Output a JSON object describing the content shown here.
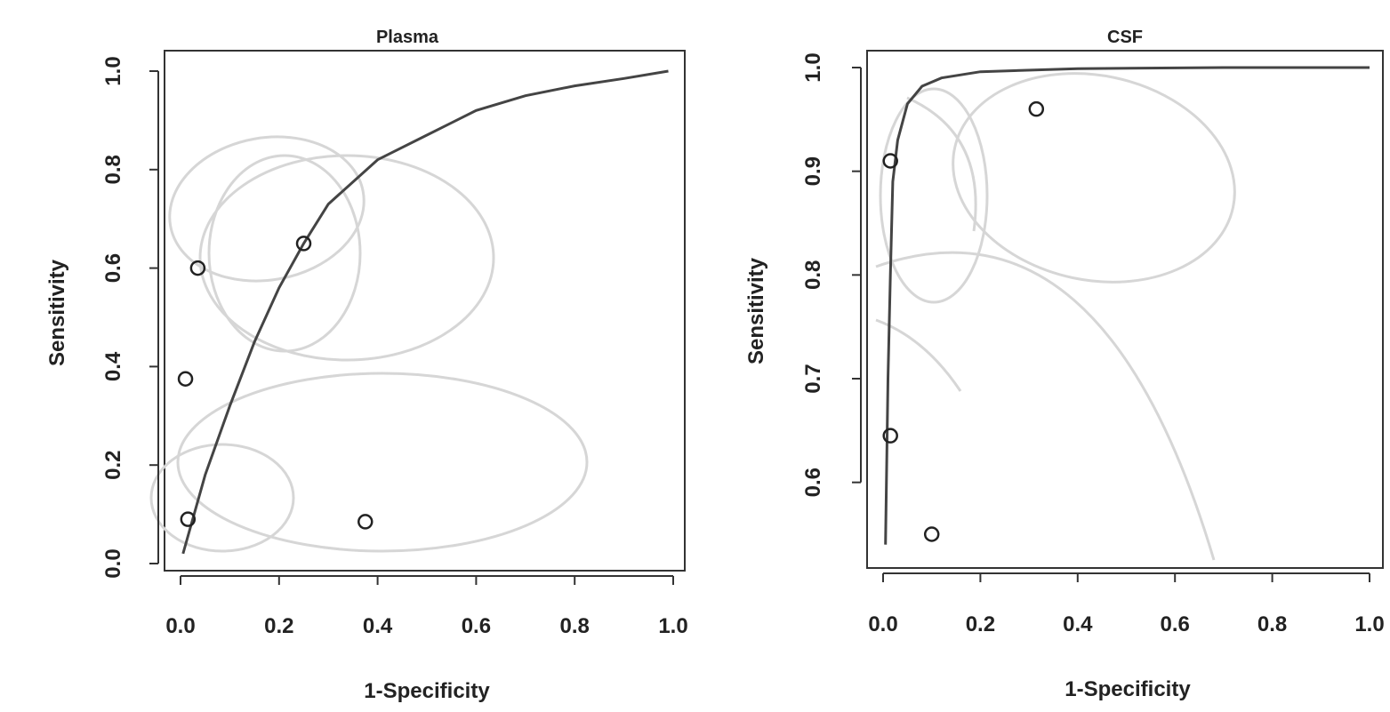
{
  "chart_data": [
    {
      "type": "scatter",
      "title": "Plasma",
      "xlabel": "1-Specificity",
      "ylabel": "Sensitivity",
      "xlim": [
        0.0,
        1.0
      ],
      "ylim": [
        0.0,
        1.0
      ],
      "xticks": [
        "0.0",
        "0.2",
        "0.4",
        "0.6",
        "0.8",
        "1.0"
      ],
      "yticks": [
        "0.0",
        "0.2",
        "0.4",
        "0.6",
        "0.8",
        "1.0"
      ],
      "grid": false,
      "points": [
        {
          "x": 0.035,
          "y": 0.6
        },
        {
          "x": 0.25,
          "y": 0.65
        },
        {
          "x": 0.01,
          "y": 0.375
        },
        {
          "x": 0.015,
          "y": 0.09
        },
        {
          "x": 0.375,
          "y": 0.085
        }
      ],
      "sroc_curve": [
        {
          "x": 0.005,
          "y": 0.02
        },
        {
          "x": 0.05,
          "y": 0.18
        },
        {
          "x": 0.1,
          "y": 0.32
        },
        {
          "x": 0.15,
          "y": 0.45
        },
        {
          "x": 0.2,
          "y": 0.56
        },
        {
          "x": 0.25,
          "y": 0.65
        },
        {
          "x": 0.3,
          "y": 0.73
        },
        {
          "x": 0.4,
          "y": 0.82
        },
        {
          "x": 0.5,
          "y": 0.87
        },
        {
          "x": 0.6,
          "y": 0.92
        },
        {
          "x": 0.7,
          "y": 0.95
        },
        {
          "x": 0.8,
          "y": 0.97
        },
        {
          "x": 0.9,
          "y": 0.985
        },
        {
          "x": 0.99,
          "y": 1.0
        }
      ]
    },
    {
      "type": "scatter",
      "title": "CSF",
      "xlabel": "1-Specificity",
      "ylabel": "Sensitivity",
      "xlim": [
        0.0,
        1.0
      ],
      "ylim": [
        0.52,
        1.0
      ],
      "xticks": [
        "0.0",
        "0.2",
        "0.4",
        "0.6",
        "0.8",
        "1.0"
      ],
      "yticks": [
        "0.6",
        "0.7",
        "0.8",
        "0.9",
        "1.0"
      ],
      "grid": false,
      "points": [
        {
          "x": 0.015,
          "y": 0.91
        },
        {
          "x": 0.315,
          "y": 0.96
        },
        {
          "x": 0.015,
          "y": 0.645
        },
        {
          "x": 0.1,
          "y": 0.55
        }
      ],
      "sroc_curve": [
        {
          "x": 0.005,
          "y": 0.54
        },
        {
          "x": 0.01,
          "y": 0.7
        },
        {
          "x": 0.015,
          "y": 0.8
        },
        {
          "x": 0.02,
          "y": 0.89
        },
        {
          "x": 0.03,
          "y": 0.93
        },
        {
          "x": 0.05,
          "y": 0.965
        },
        {
          "x": 0.08,
          "y": 0.982
        },
        {
          "x": 0.12,
          "y": 0.99
        },
        {
          "x": 0.2,
          "y": 0.996
        },
        {
          "x": 0.4,
          "y": 0.999
        },
        {
          "x": 0.7,
          "y": 1.0
        },
        {
          "x": 1.0,
          "y": 1.0
        }
      ]
    }
  ]
}
